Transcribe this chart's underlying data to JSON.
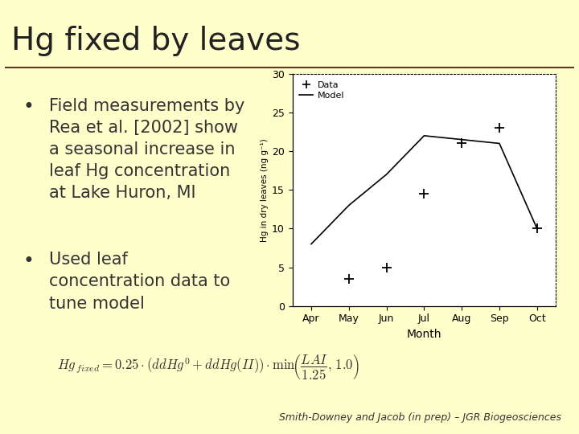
{
  "bg_color": "#ffffcc",
  "title": "Hg fixed by leaves",
  "title_fontsize": 28,
  "title_color": "#222222",
  "separator_color": "#5c3a1e",
  "bullet1_lines": [
    "Field measurements by",
    "Rea et al. [2002] show",
    "a seasonal increase in",
    "leaf Hg concentration",
    "at Lake Huron, MI"
  ],
  "bullet2_lines": [
    "Used leaf",
    "concentration data to",
    "tune model"
  ],
  "bullet_fontsize": 15,
  "bullet_color": "#333333",
  "model_x": [
    4,
    5,
    6,
    7,
    8,
    9,
    10
  ],
  "model_y": [
    8,
    13,
    17,
    22,
    21.5,
    21,
    10
  ],
  "data_x": [
    5,
    6,
    7,
    8,
    9,
    10
  ],
  "data_y": [
    3.5,
    5,
    14.5,
    21,
    23,
    10
  ],
  "chart_xlabel": "Month",
  "chart_ylabel": "Hg in dry leaves (ng g⁻¹)",
  "chart_xticks": [
    4,
    5,
    6,
    7,
    8,
    9,
    10
  ],
  "chart_xticklabels": [
    "Apr",
    "May",
    "Jun",
    "Jul",
    "Aug",
    "Sep",
    "Oct"
  ],
  "chart_yticks": [
    0,
    5,
    10,
    15,
    20,
    25,
    30
  ],
  "chart_ylim": [
    0,
    30
  ],
  "chart_bg": "#ffffff",
  "formula_text": "$Hg_{\\,fixed} = 0.25 \\cdot (ddHg^0 + ddHg(II)) \\cdot \\min\\!\\left(\\dfrac{LAI}{1.25},\\, 1.0\\right)$",
  "citation": "Smith-Downey and Jacob (in prep) – JGR Biogeosciences",
  "citation_fontsize": 9
}
